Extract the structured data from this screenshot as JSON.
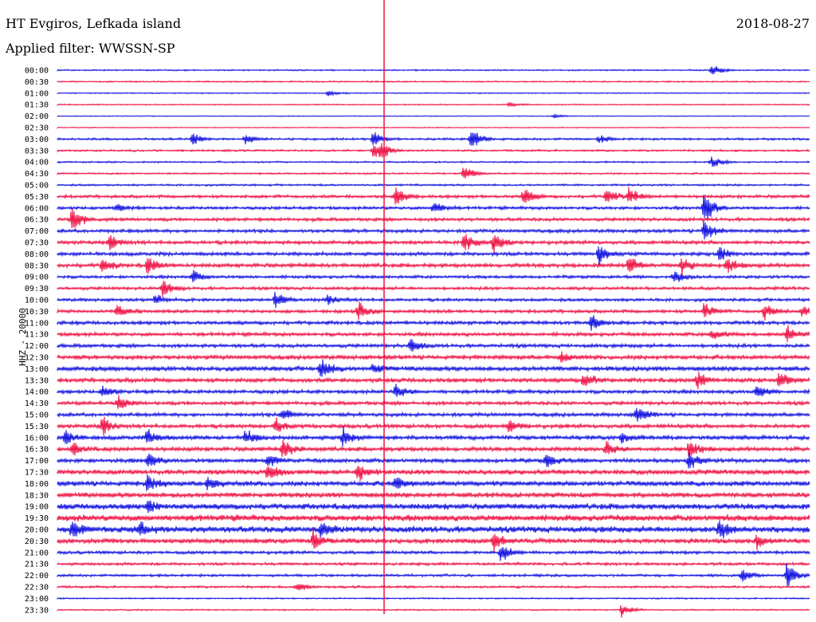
{
  "header": {
    "station": "HT Evgiros, Lefkada island",
    "filter": "Applied filter: WWSSN-SP",
    "date": "2018-08-27",
    "channel": "HHZ - 20000"
  },
  "colors": {
    "blue": "#1010e0",
    "red": "#ee1144"
  },
  "chart_data": {
    "type": "line",
    "title": "HT Evgiros, Lefkada island",
    "subtitle": "Applied filter: WWSSN-SP",
    "ylabel": "HHZ - 20000",
    "rows": [
      "00:00",
      "00:30",
      "01:00",
      "01:30",
      "02:00",
      "02:30",
      "03:00",
      "03:30",
      "04:00",
      "04:30",
      "05:00",
      "05:30",
      "06:00",
      "06:30",
      "07:00",
      "07:30",
      "08:00",
      "08:30",
      "09:00",
      "09:30",
      "10:00",
      "10:30",
      "11:00",
      "11:30",
      "12:00",
      "12:30",
      "13:00",
      "13:30",
      "14:00",
      "14:30",
      "15:00",
      "15:30",
      "16:00",
      "16:30",
      "17:00",
      "17:30",
      "18:00",
      "18:30",
      "19:00",
      "19:30",
      "20:00",
      "20:30",
      "21:00",
      "21:30",
      "22:00",
      "22:30",
      "23:00",
      "23:30"
    ],
    "row_colors": [
      "blue",
      "red"
    ],
    "noise_level": [
      1,
      1,
      0.8,
      0.8,
      0.6,
      0.7,
      1.6,
      1.4,
      1.2,
      1.2,
      1.4,
      2.2,
      2.2,
      2.4,
      2.4,
      2.6,
      2.6,
      2.8,
      2.2,
      2.2,
      2.2,
      2.4,
      2.6,
      2.6,
      2.6,
      3,
      3.4,
      3,
      2.6,
      2.6,
      2.6,
      2.8,
      3,
      3,
      3,
      3.4,
      3.6,
      3.6,
      4.2,
      4.6,
      4.6,
      3.4,
      2.2,
      2,
      1.8,
      1.6,
      1,
      1
    ],
    "events": [
      {
        "row": 0,
        "t": 0.87,
        "amp": 10
      },
      {
        "row": 2,
        "t": 0.36,
        "amp": 4
      },
      {
        "row": 3,
        "t": 0.6,
        "amp": 4
      },
      {
        "row": 4,
        "t": 0.66,
        "amp": 3
      },
      {
        "row": 6,
        "t": 0.18,
        "amp": 10
      },
      {
        "row": 6,
        "t": 0.25,
        "amp": 7
      },
      {
        "row": 6,
        "t": 0.42,
        "amp": 12
      },
      {
        "row": 6,
        "t": 0.55,
        "amp": 20
      },
      {
        "row": 6,
        "t": 0.72,
        "amp": 6
      },
      {
        "row": 7,
        "t": 0.42,
        "amp": 14
      },
      {
        "row": 7,
        "t": 0.43,
        "amp": 10
      },
      {
        "row": 8,
        "t": 0.87,
        "amp": 10
      },
      {
        "row": 9,
        "t": 0.54,
        "amp": 14
      },
      {
        "row": 11,
        "t": 0.45,
        "amp": 16
      },
      {
        "row": 11,
        "t": 0.62,
        "amp": 16
      },
      {
        "row": 11,
        "t": 0.73,
        "amp": 14
      },
      {
        "row": 11,
        "t": 0.76,
        "amp": 14
      },
      {
        "row": 12,
        "t": 0.08,
        "amp": 6
      },
      {
        "row": 12,
        "t": 0.5,
        "amp": 10
      },
      {
        "row": 12,
        "t": 0.86,
        "amp": 28
      },
      {
        "row": 13,
        "t": 0.02,
        "amp": 20
      },
      {
        "row": 14,
        "t": 0.86,
        "amp": 20
      },
      {
        "row": 15,
        "t": 0.07,
        "amp": 14
      },
      {
        "row": 15,
        "t": 0.54,
        "amp": 18
      },
      {
        "row": 15,
        "t": 0.58,
        "amp": 16
      },
      {
        "row": 16,
        "t": 0.72,
        "amp": 16
      },
      {
        "row": 16,
        "t": 0.88,
        "amp": 12
      },
      {
        "row": 17,
        "t": 0.06,
        "amp": 12
      },
      {
        "row": 17,
        "t": 0.12,
        "amp": 14
      },
      {
        "row": 17,
        "t": 0.76,
        "amp": 16
      },
      {
        "row": 17,
        "t": 0.83,
        "amp": 14
      },
      {
        "row": 17,
        "t": 0.89,
        "amp": 12
      },
      {
        "row": 18,
        "t": 0.18,
        "amp": 10
      },
      {
        "row": 18,
        "t": 0.82,
        "amp": 10
      },
      {
        "row": 19,
        "t": 0.14,
        "amp": 14
      },
      {
        "row": 20,
        "t": 0.13,
        "amp": 8
      },
      {
        "row": 20,
        "t": 0.29,
        "amp": 14
      },
      {
        "row": 20,
        "t": 0.36,
        "amp": 8
      },
      {
        "row": 21,
        "t": 0.08,
        "amp": 10
      },
      {
        "row": 21,
        "t": 0.4,
        "amp": 14
      },
      {
        "row": 21,
        "t": 0.86,
        "amp": 12
      },
      {
        "row": 21,
        "t": 0.94,
        "amp": 12
      },
      {
        "row": 21,
        "t": 0.99,
        "amp": 10
      },
      {
        "row": 22,
        "t": 0.71,
        "amp": 12
      },
      {
        "row": 23,
        "t": 0.87,
        "amp": 10
      },
      {
        "row": 23,
        "t": 0.97,
        "amp": 14
      },
      {
        "row": 24,
        "t": 0.47,
        "amp": 12
      },
      {
        "row": 25,
        "t": 0.67,
        "amp": 8
      },
      {
        "row": 26,
        "t": 0.35,
        "amp": 16
      },
      {
        "row": 26,
        "t": 0.42,
        "amp": 8
      },
      {
        "row": 27,
        "t": 0.7,
        "amp": 14
      },
      {
        "row": 27,
        "t": 0.85,
        "amp": 14
      },
      {
        "row": 27,
        "t": 0.96,
        "amp": 14
      },
      {
        "row": 28,
        "t": 0.06,
        "amp": 8
      },
      {
        "row": 28,
        "t": 0.45,
        "amp": 12
      },
      {
        "row": 28,
        "t": 0.93,
        "amp": 12
      },
      {
        "row": 29,
        "t": 0.08,
        "amp": 12
      },
      {
        "row": 30,
        "t": 0.3,
        "amp": 12
      },
      {
        "row": 30,
        "t": 0.77,
        "amp": 14
      },
      {
        "row": 31,
        "t": 0.06,
        "amp": 14
      },
      {
        "row": 31,
        "t": 0.29,
        "amp": 12
      },
      {
        "row": 31,
        "t": 0.6,
        "amp": 10
      },
      {
        "row": 32,
        "t": 0.01,
        "amp": 12
      },
      {
        "row": 32,
        "t": 0.12,
        "amp": 12
      },
      {
        "row": 32,
        "t": 0.25,
        "amp": 12
      },
      {
        "row": 32,
        "t": 0.38,
        "amp": 14
      },
      {
        "row": 32,
        "t": 0.75,
        "amp": 8
      },
      {
        "row": 33,
        "t": 0.02,
        "amp": 10
      },
      {
        "row": 33,
        "t": 0.3,
        "amp": 16
      },
      {
        "row": 33,
        "t": 0.73,
        "amp": 12
      },
      {
        "row": 33,
        "t": 0.84,
        "amp": 14
      },
      {
        "row": 34,
        "t": 0.12,
        "amp": 14
      },
      {
        "row": 34,
        "t": 0.28,
        "amp": 10
      },
      {
        "row": 34,
        "t": 0.65,
        "amp": 12
      },
      {
        "row": 34,
        "t": 0.84,
        "amp": 14
      },
      {
        "row": 35,
        "t": 0.28,
        "amp": 16
      },
      {
        "row": 35,
        "t": 0.4,
        "amp": 18
      },
      {
        "row": 36,
        "t": 0.12,
        "amp": 14
      },
      {
        "row": 36,
        "t": 0.2,
        "amp": 10
      },
      {
        "row": 36,
        "t": 0.45,
        "amp": 12
      },
      {
        "row": 38,
        "t": 0.12,
        "amp": 10
      },
      {
        "row": 40,
        "t": 0.02,
        "amp": 12
      },
      {
        "row": 40,
        "t": 0.11,
        "amp": 12
      },
      {
        "row": 40,
        "t": 0.35,
        "amp": 14
      },
      {
        "row": 40,
        "t": 0.88,
        "amp": 14
      },
      {
        "row": 41,
        "t": 0.34,
        "amp": 14
      },
      {
        "row": 41,
        "t": 0.58,
        "amp": 14
      },
      {
        "row": 41,
        "t": 0.93,
        "amp": 10
      },
      {
        "row": 42,
        "t": 0.59,
        "amp": 16
      },
      {
        "row": 44,
        "t": 0.91,
        "amp": 12
      },
      {
        "row": 44,
        "t": 0.97,
        "amp": 22
      },
      {
        "row": 45,
        "t": 0.32,
        "amp": 8
      },
      {
        "row": 47,
        "t": 0.75,
        "amp": 10
      }
    ],
    "grid": false
  }
}
